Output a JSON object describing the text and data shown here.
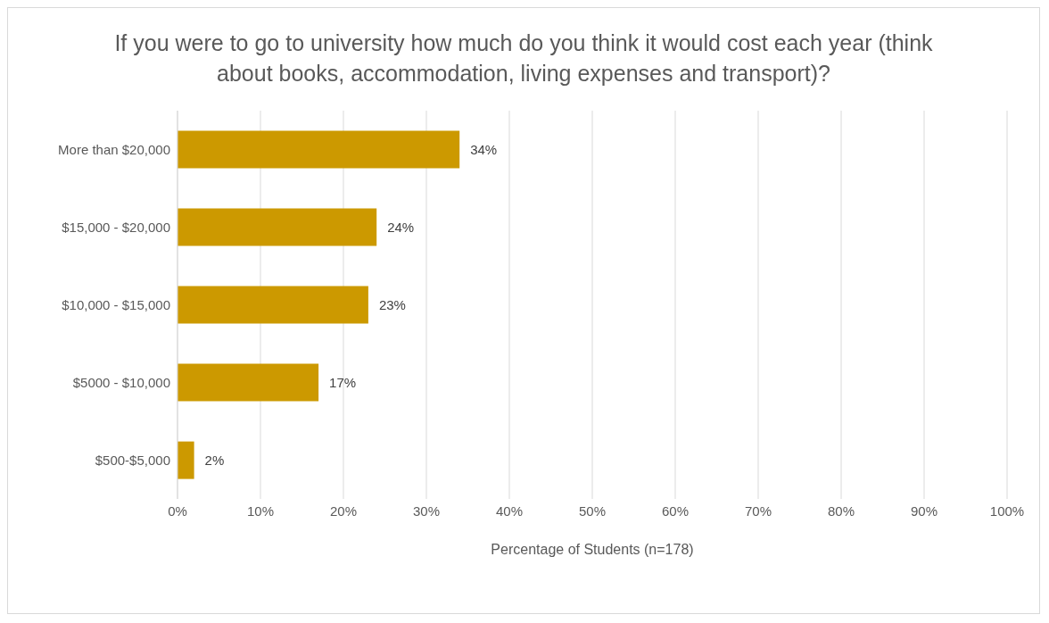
{
  "chart_data": {
    "type": "bar",
    "orientation": "horizontal",
    "title": "If you were to go to university how much do you think it would cost each year (think about books, accommodation, living expenses and transport)?",
    "xlabel": "Percentage of Students (n=178)",
    "categories": [
      "More than $20,000",
      "$15,000 - $20,000",
      "$10,000 - $15,000",
      "$5000 - $10,000",
      "$500-$5,000"
    ],
    "values": [
      34,
      24,
      23,
      17,
      2
    ],
    "value_labels": [
      "34%",
      "24%",
      "23%",
      "17%",
      "2%"
    ],
    "color": "#cc9900",
    "xlim": [
      0,
      100
    ],
    "xticks": [
      {
        "value": 0,
        "label": "0%"
      },
      {
        "value": 10,
        "label": "10%"
      },
      {
        "value": 20,
        "label": "20%"
      },
      {
        "value": 30,
        "label": "30%"
      },
      {
        "value": 40,
        "label": "40%"
      },
      {
        "value": 50,
        "label": "50%"
      },
      {
        "value": 60,
        "label": "60%"
      },
      {
        "value": 70,
        "label": "70%"
      },
      {
        "value": 80,
        "label": "80%"
      },
      {
        "value": 90,
        "label": "90%"
      },
      {
        "value": 100,
        "label": "100%"
      }
    ],
    "grid": "x",
    "legend": false
  }
}
